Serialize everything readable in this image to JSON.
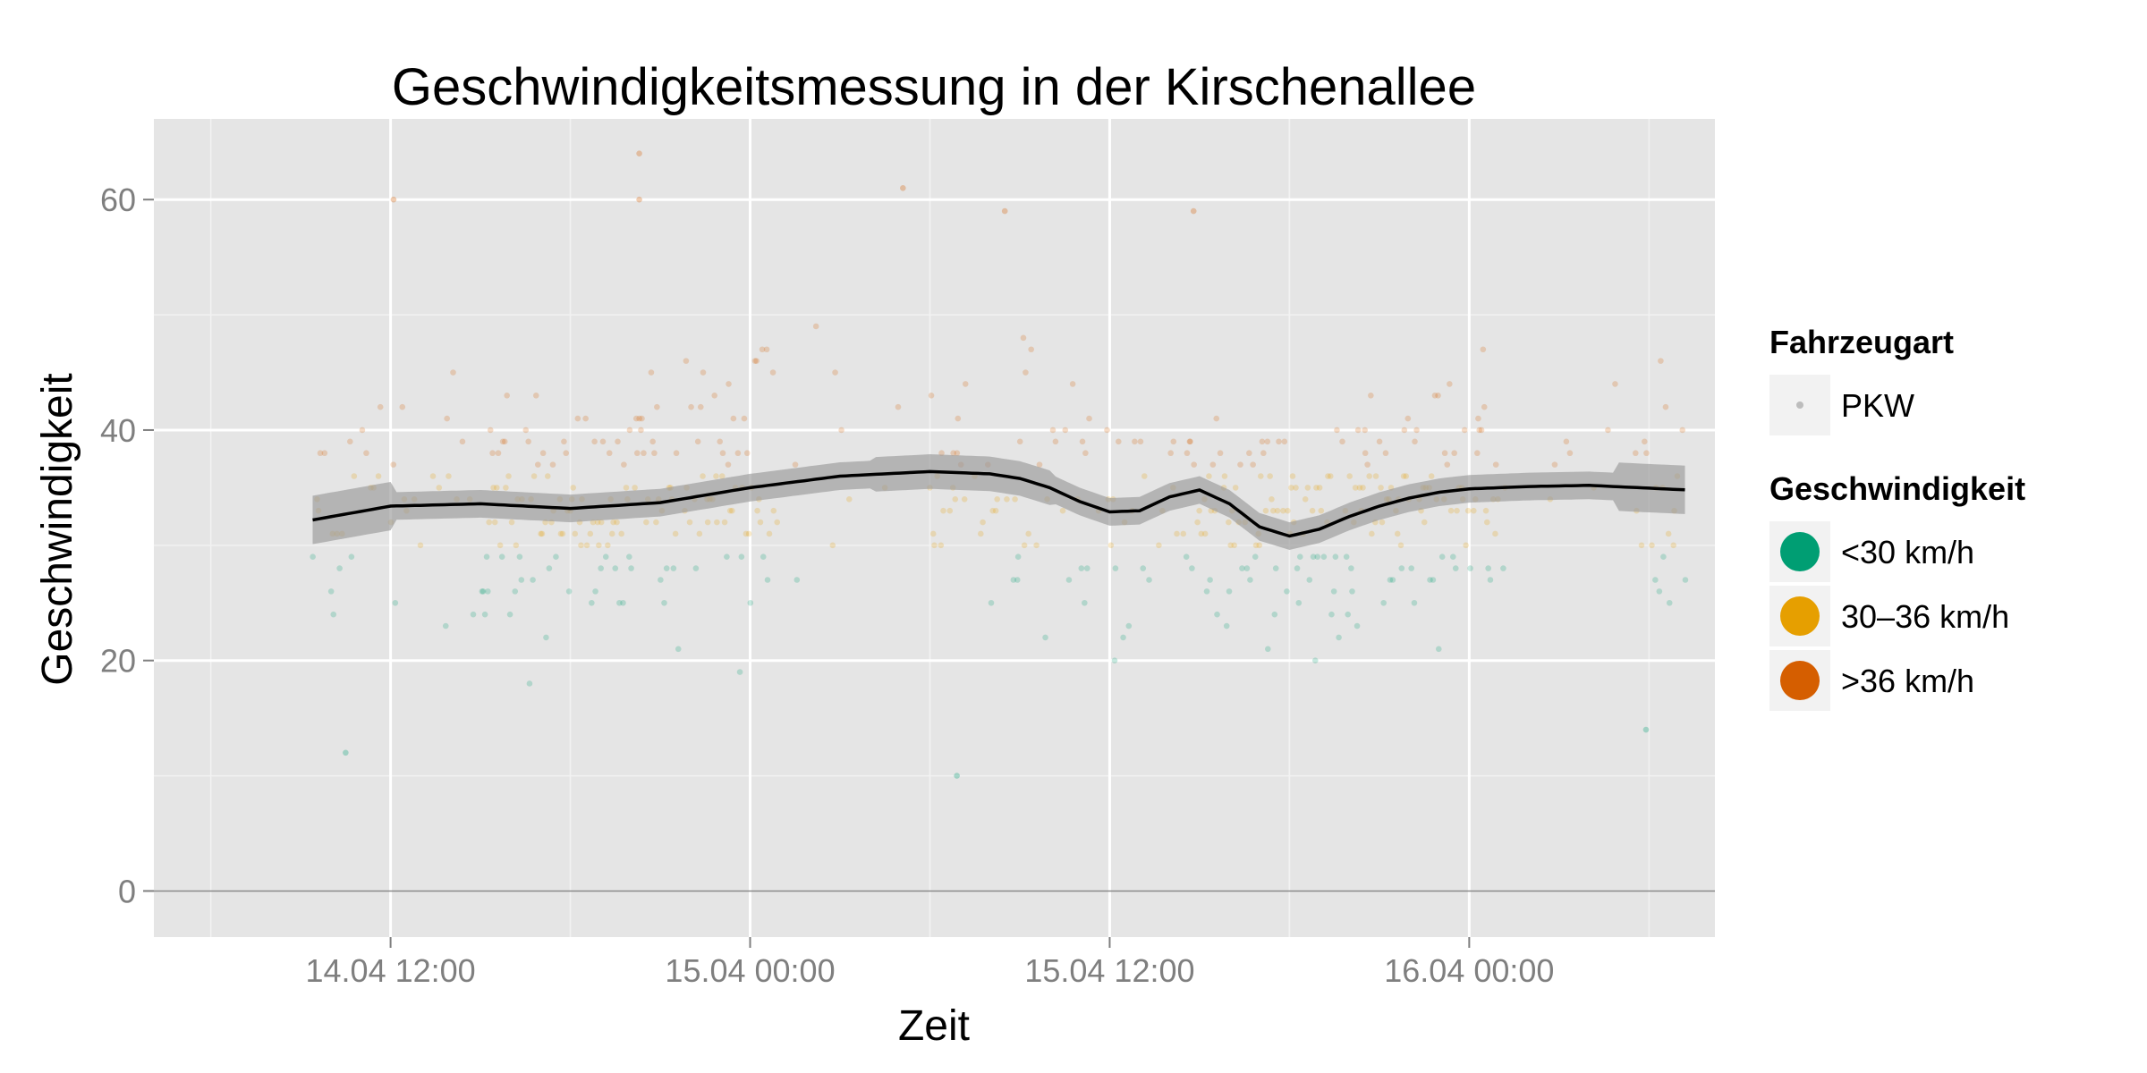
{
  "chart_data": {
    "type": "scatter",
    "title": "Geschwindigkeitsmessung in der Kirschenallee",
    "xlabel": "Zeit",
    "ylabel": "Geschwindigkeit",
    "x_range_hours": [
      -7.9,
      44.2
    ],
    "ylim": [
      -4,
      67
    ],
    "x_ticks": [
      {
        "hours": 0,
        "label": "14.04 12:00"
      },
      {
        "hours": 12,
        "label": "15.04 00:00"
      },
      {
        "hours": 24,
        "label": "15.04 12:00"
      },
      {
        "hours": 36,
        "label": "16.04 00:00"
      }
    ],
    "y_ticks": [
      0,
      20,
      40,
      60
    ],
    "grid": true,
    "legend_position": "right",
    "legends": [
      {
        "title": "Fahrzeugart",
        "entries": [
          {
            "label": "PKW",
            "color": "#bdbdbd"
          }
        ]
      },
      {
        "title": "Geschwindigkeit",
        "entries": [
          {
            "label": "<30 km/h",
            "color": "#009E73"
          },
          {
            "label": "30–36 km/h",
            "color": "#E69F00"
          },
          {
            "label": ">36 km/h",
            "color": "#D55E00"
          }
        ]
      }
    ],
    "colors": {
      "low": "#009E73",
      "mid": "#E69F00",
      "high": "#D55E00",
      "smooth": "#000000",
      "band": "#999999"
    },
    "smooth_curve": {
      "x": [
        -2.6,
        0,
        3,
        6,
        9,
        12,
        15,
        18,
        20,
        21,
        22,
        23,
        24,
        25,
        26,
        27,
        28,
        29,
        30,
        31,
        32,
        33,
        34,
        35,
        36,
        38,
        40,
        43.3
      ],
      "y": [
        32.2,
        33.4,
        33.6,
        33.2,
        33.7,
        35.0,
        36.0,
        36.4,
        36.2,
        35.8,
        35.0,
        33.8,
        32.9,
        33.0,
        34.2,
        34.8,
        33.6,
        31.6,
        30.8,
        31.4,
        32.5,
        33.4,
        34.1,
        34.6,
        34.9,
        35.1,
        35.2,
        34.8
      ]
    },
    "observations": [
      {
        "hours": 8.3,
        "speed": 60
      },
      {
        "hours": 8.3,
        "speed": 64
      },
      {
        "hours": 0.1,
        "speed": 60
      },
      {
        "hours": 17.1,
        "speed": 61
      },
      {
        "hours": 20.5,
        "speed": 59
      },
      {
        "hours": 26.8,
        "speed": 59
      },
      {
        "hours": 18.9,
        "speed": 10
      },
      {
        "hours": -1.5,
        "speed": 12
      },
      {
        "hours": 41.9,
        "speed": 14
      }
    ]
  }
}
